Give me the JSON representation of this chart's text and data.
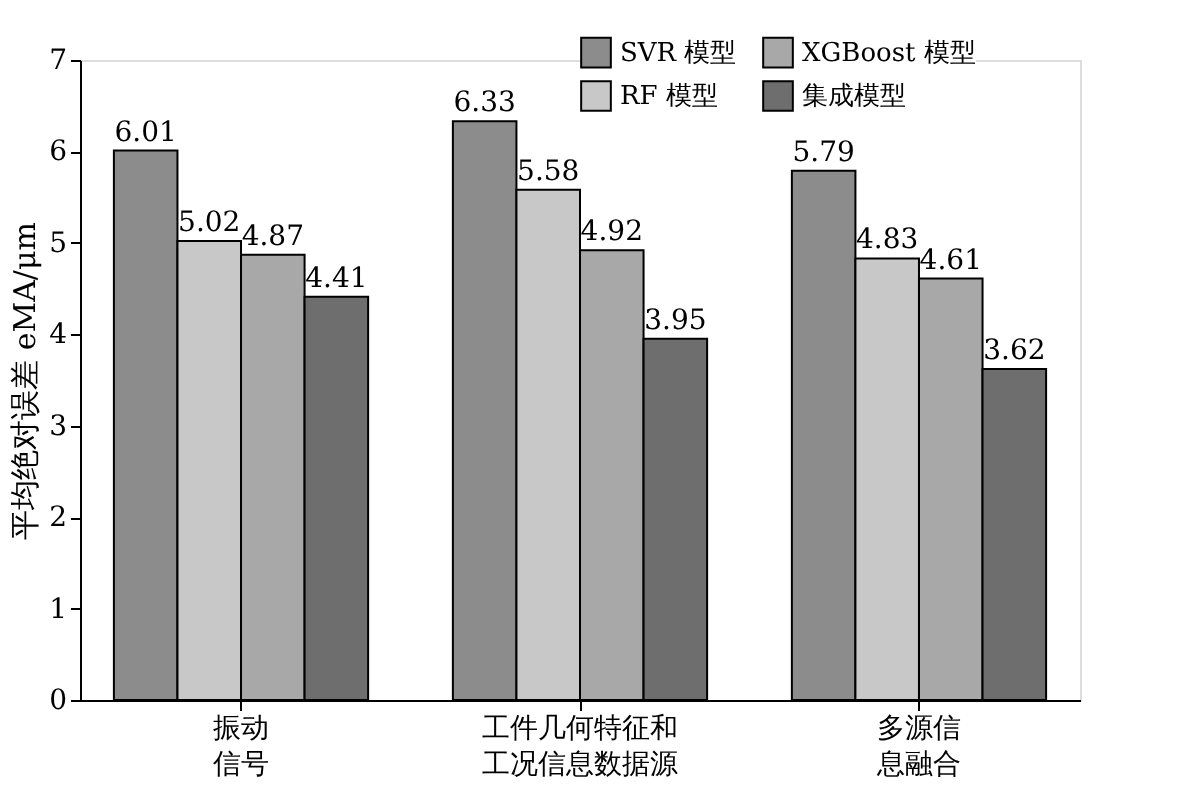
{
  "chart_data": {
    "type": "bar",
    "ylabel": "平均绝对误差 eMA/μm",
    "categories": [
      "振动信号",
      "工件几何特征和工况信息数据源",
      "多源信息融合"
    ],
    "series": [
      {
        "name": "SVR 模型",
        "color": "#8c8c8c",
        "values": [
          6.01,
          6.33,
          5.79
        ]
      },
      {
        "name": "RF 模型",
        "color": "#c8c8c8",
        "values": [
          5.02,
          5.58,
          4.83
        ]
      },
      {
        "name": "XGBoost 模型",
        "color": "#a8a8a8",
        "values": [
          4.87,
          4.92,
          4.61
        ]
      },
      {
        "name": "集成模型",
        "color": "#6e6e6e",
        "values": [
          4.41,
          3.95,
          3.62
        ]
      }
    ],
    "ylim": [
      0,
      7
    ],
    "yticks": [
      0,
      1,
      2,
      3,
      4,
      5,
      6,
      7
    ],
    "grid": false,
    "legend": "top right",
    "data_labels": true
  }
}
